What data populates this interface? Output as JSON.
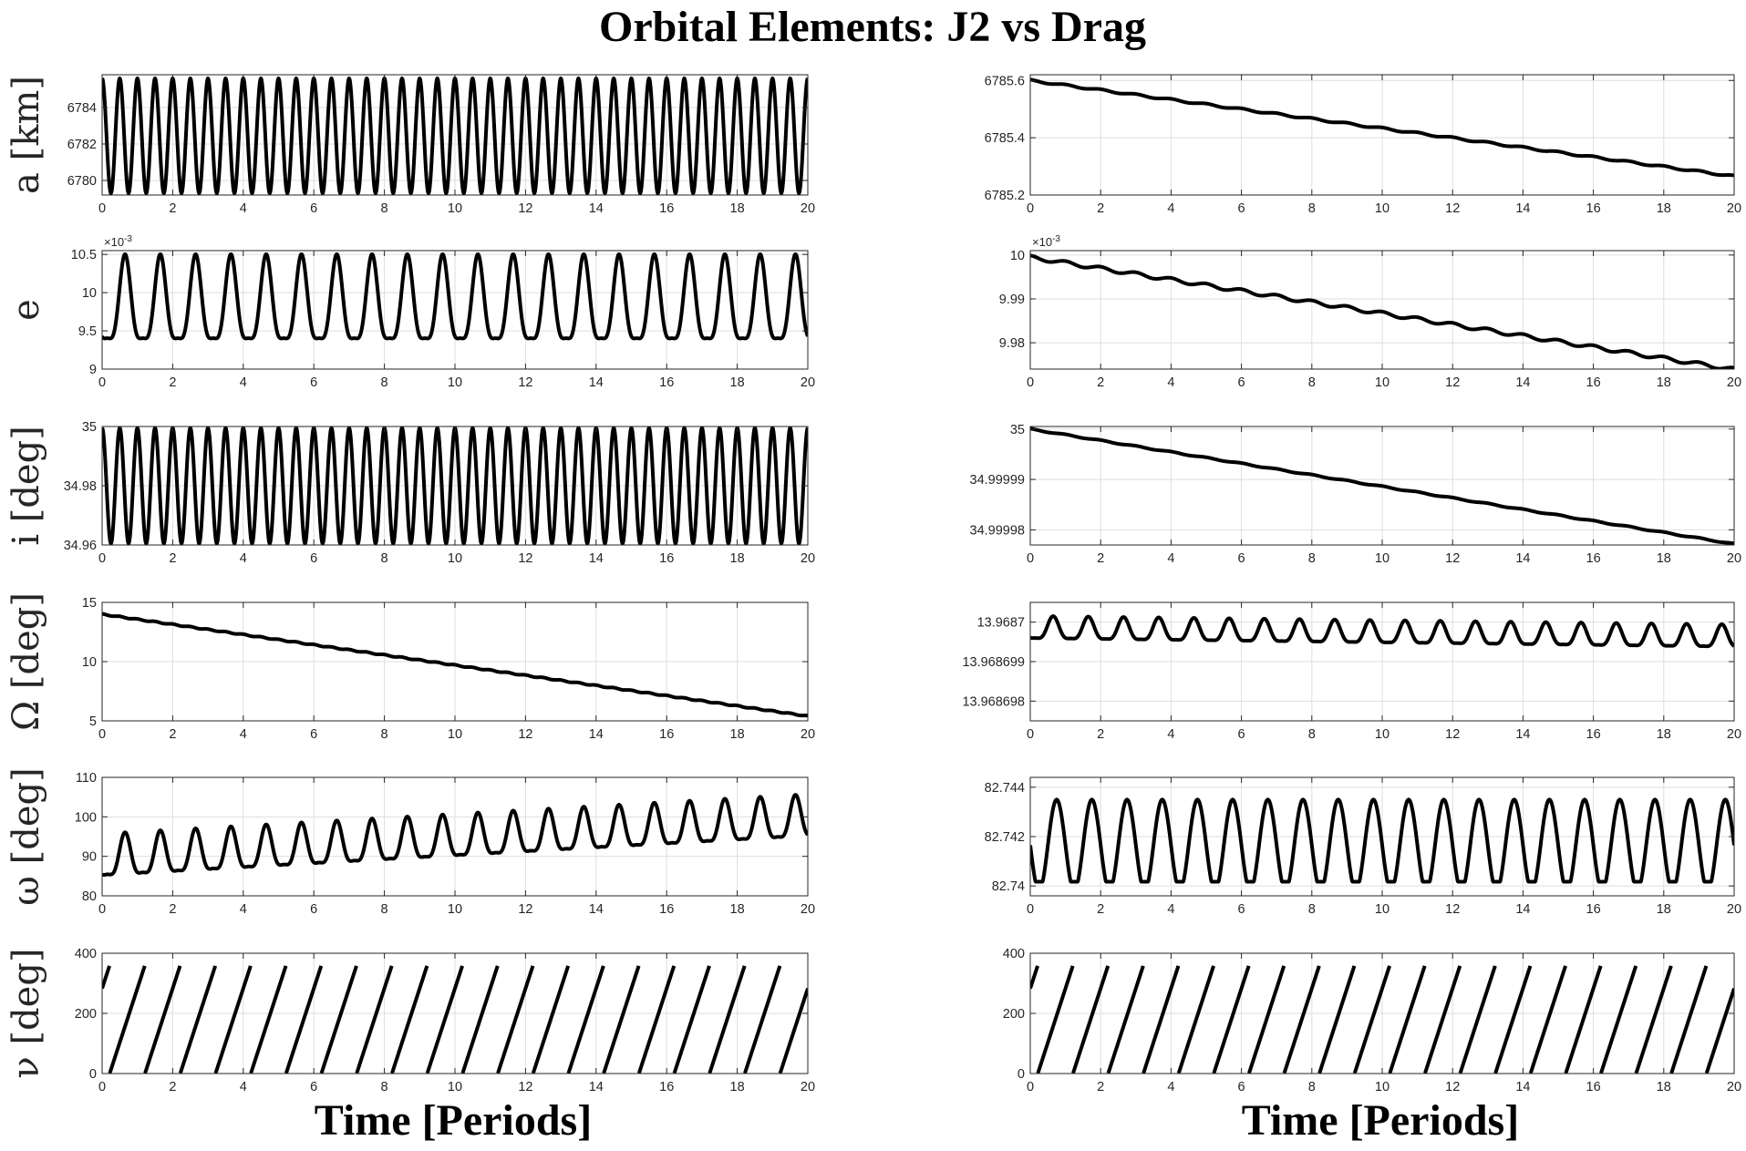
{
  "title": "Orbital Elements: J2 vs Drag",
  "columns": [
    {
      "xlabel": "Time [Periods]"
    },
    {
      "xlabel": "Time [Periods]"
    }
  ],
  "chart_data": [
    {
      "type": "line",
      "title": "",
      "xlabel": "",
      "ylabel": "a [km]",
      "xlim": [
        0,
        20
      ],
      "ylim": [
        6779.2,
        6785.8
      ],
      "xticks": [
        0,
        2,
        4,
        6,
        8,
        10,
        12,
        14,
        16,
        18,
        20
      ],
      "yticks": [
        6780,
        6782,
        6784
      ],
      "ytick_labels": [
        "6780",
        "6782",
        "6784"
      ],
      "grid": true,
      "series": [
        {
          "model": "osc",
          "base": 6782.45,
          "slope": 0,
          "amp": 3.15,
          "period": 0.5,
          "phase": 0,
          "harm2": 0,
          "osc_clip": null,
          "samples": 1400,
          "x_end": 20
        }
      ]
    },
    {
      "type": "line",
      "title": "",
      "xlabel": "",
      "ylabel": "a [km]",
      "xlim": [
        0,
        20
      ],
      "ylim": [
        6785.2,
        6785.62
      ],
      "xticks": [
        0,
        2,
        4,
        6,
        8,
        10,
        12,
        14,
        16,
        18,
        20
      ],
      "yticks": [
        6785.2,
        6785.4,
        6785.6
      ],
      "ytick_labels": [
        "6785.2",
        "6785.4",
        "6785.6"
      ],
      "grid": true,
      "series": [
        {
          "model": "osc",
          "base": 6785.6,
          "slope": -0.01672,
          "amp": 0.003,
          "period": 1,
          "phase": 0,
          "harm2": 0,
          "osc_clip": null,
          "samples": 800,
          "x_end": 20
        }
      ]
    },
    {
      "type": "line",
      "title": "",
      "xlabel": "",
      "ylabel": "e",
      "xlim": [
        0,
        20
      ],
      "ylim": [
        9,
        10.55
      ],
      "exponent": "×10^-3",
      "xticks": [
        0,
        2,
        4,
        6,
        8,
        10,
        12,
        14,
        16,
        18,
        20
      ],
      "yticks": [
        9,
        9.5,
        10,
        10.5
      ],
      "ytick_labels": [
        "9",
        "9.5",
        "10",
        "10.5"
      ],
      "grid": true,
      "series": [
        {
          "model": "osc",
          "base": 9.8,
          "slope": 0,
          "amp": 0.55,
          "period": 1,
          "phase": 0.35,
          "harm2": 0.28,
          "osc_clip": null,
          "samples": 1400,
          "x_end": 20
        }
      ]
    },
    {
      "type": "line",
      "title": "",
      "xlabel": "",
      "ylabel": "e",
      "xlim": [
        0,
        20
      ],
      "ylim": [
        9.974,
        10.001
      ],
      "exponent": "×10^-3",
      "xticks": [
        0,
        2,
        4,
        6,
        8,
        10,
        12,
        14,
        16,
        18,
        20
      ],
      "yticks": [
        9.98,
        9.99,
        10
      ],
      "ytick_labels": [
        "9.98",
        "9.99",
        "10"
      ],
      "grid": true,
      "series": [
        {
          "model": "osc",
          "base": 9.9995,
          "slope": -0.00128,
          "amp": 0.0004,
          "period": 1,
          "phase": 0,
          "harm2": 0,
          "osc_clip": null,
          "samples": 800,
          "x_end": 20
        }
      ]
    },
    {
      "type": "line",
      "title": "",
      "xlabel": "",
      "ylabel": "i [deg]",
      "xlim": [
        0,
        20
      ],
      "ylim": [
        34.96,
        35
      ],
      "xticks": [
        0,
        2,
        4,
        6,
        8,
        10,
        12,
        14,
        16,
        18,
        20
      ],
      "yticks": [
        34.96,
        34.98,
        35
      ],
      "ytick_labels": [
        "34.96",
        "34.98",
        "35"
      ],
      "grid": true,
      "series": [
        {
          "model": "osc",
          "base": 34.98,
          "slope": 0,
          "amp": 0.0195,
          "period": 0.5,
          "phase": 0,
          "harm2": 0,
          "osc_clip": null,
          "samples": 1400,
          "x_end": 20
        }
      ]
    },
    {
      "type": "line",
      "title": "",
      "xlabel": "",
      "ylabel": "i [deg]",
      "xlim": [
        0,
        20
      ],
      "ylim": [
        34.999977,
        35.0000005
      ],
      "xticks": [
        0,
        2,
        4,
        6,
        8,
        10,
        12,
        14,
        16,
        18,
        20
      ],
      "yticks": [
        34.99998,
        34.99999,
        35
      ],
      "ytick_labels": [
        "34.99998",
        "34.99999",
        "35"
      ],
      "grid": true,
      "series": [
        {
          "model": "osc",
          "base": 35.0,
          "slope": -1.14e-06,
          "amp": 1e-07,
          "period": 1,
          "phase": 0,
          "harm2": 0,
          "osc_clip": null,
          "samples": 800,
          "x_end": 20
        }
      ]
    },
    {
      "type": "line",
      "title": "",
      "xlabel": "",
      "ylabel": "Ω [deg]",
      "xlim": [
        0,
        20
      ],
      "ylim": [
        5,
        15
      ],
      "xticks": [
        0,
        2,
        4,
        6,
        8,
        10,
        12,
        14,
        16,
        18,
        20
      ],
      "yticks": [
        5,
        10,
        15
      ],
      "ytick_labels": [
        "5",
        "10",
        "15"
      ],
      "grid": true,
      "series": [
        {
          "model": "osc",
          "base": 14.0,
          "slope": -0.43,
          "amp": 0.04,
          "period": 0.5,
          "phase": 0,
          "harm2": 0,
          "osc_clip": null,
          "samples": 800,
          "x_end": 20
        }
      ]
    },
    {
      "type": "line",
      "title": "",
      "xlabel": "",
      "ylabel": "Ω [deg]",
      "xlim": [
        0,
        20
      ],
      "ylim": [
        13.9686975,
        13.9687005
      ],
      "xticks": [
        0,
        2,
        4,
        6,
        8,
        10,
        12,
        14,
        16,
        18,
        20
      ],
      "yticks": [
        13.968698,
        13.968699,
        13.9687
      ],
      "ytick_labels": [
        "13.968698",
        "13.968699",
        "13.9687"
      ],
      "grid": true,
      "series": [
        {
          "model": "osc",
          "base": 13.9686998,
          "slope": -1.08e-08,
          "amp": 2.8e-07,
          "period": 1,
          "phase": 0.35,
          "harm2": 0.28,
          "osc_clip": null,
          "samples": 1400,
          "x_end": 20
        }
      ]
    },
    {
      "type": "line",
      "title": "",
      "xlabel": "",
      "ylabel": "ω [deg]",
      "xlim": [
        0,
        20
      ],
      "ylim": [
        80,
        110
      ],
      "xticks": [
        0,
        2,
        4,
        6,
        8,
        10,
        12,
        14,
        16,
        18,
        20
      ],
      "yticks": [
        80,
        90,
        100,
        110
      ],
      "ytick_labels": [
        "80",
        "90",
        "100",
        "110"
      ],
      "grid": true,
      "series": [
        {
          "model": "osc",
          "base": 89.0,
          "slope": 0.5,
          "amp": 5.2,
          "period": 1,
          "phase": 0.35,
          "harm2": 0.3,
          "osc_clip": null,
          "samples": 1400,
          "x_end": 20
        }
      ]
    },
    {
      "type": "line",
      "title": "",
      "xlabel": "",
      "ylabel": "ω [deg]",
      "xlim": [
        0,
        20
      ],
      "ylim": [
        82.7396,
        82.7444
      ],
      "xticks": [
        0,
        2,
        4,
        6,
        8,
        10,
        12,
        14,
        16,
        18,
        20
      ],
      "yticks": [
        82.74,
        82.742,
        82.744
      ],
      "ytick_labels": [
        "82.74",
        "82.742",
        "82.744"
      ],
      "grid": true,
      "series": [
        {
          "model": "osc",
          "base": 82.74165,
          "slope": 0,
          "amp": 0.00185,
          "period": 1,
          "phase": 0.25,
          "harm2": 0,
          "osc_clip": -0.8,
          "samples": 1400,
          "x_end": 20
        }
      ]
    },
    {
      "type": "line",
      "title": "",
      "xlabel": "",
      "ylabel": "ν [deg]",
      "xlim": [
        0,
        20
      ],
      "ylim": [
        0,
        400
      ],
      "xticks": [
        0,
        2,
        4,
        6,
        8,
        10,
        12,
        14,
        16,
        18,
        20
      ],
      "yticks": [
        0,
        200,
        400
      ],
      "ytick_labels": [
        "0",
        "200",
        "400"
      ],
      "grid": true,
      "series": [
        {
          "model": "saw",
          "start": 283,
          "rate": 360,
          "wrap": 360,
          "samples": 2400,
          "x_end": 20
        }
      ]
    },
    {
      "type": "line",
      "title": "",
      "xlabel": "",
      "ylabel": "ν [deg]",
      "xlim": [
        0,
        20
      ],
      "ylim": [
        0,
        400
      ],
      "xticks": [
        0,
        2,
        4,
        6,
        8,
        10,
        12,
        14,
        16,
        18,
        20
      ],
      "yticks": [
        0,
        200,
        400
      ],
      "ytick_labels": [
        "0",
        "200",
        "400"
      ],
      "grid": true,
      "series": [
        {
          "model": "saw",
          "start": 283,
          "rate": 360,
          "wrap": 360,
          "samples": 2400,
          "x_end": 20
        }
      ]
    }
  ]
}
